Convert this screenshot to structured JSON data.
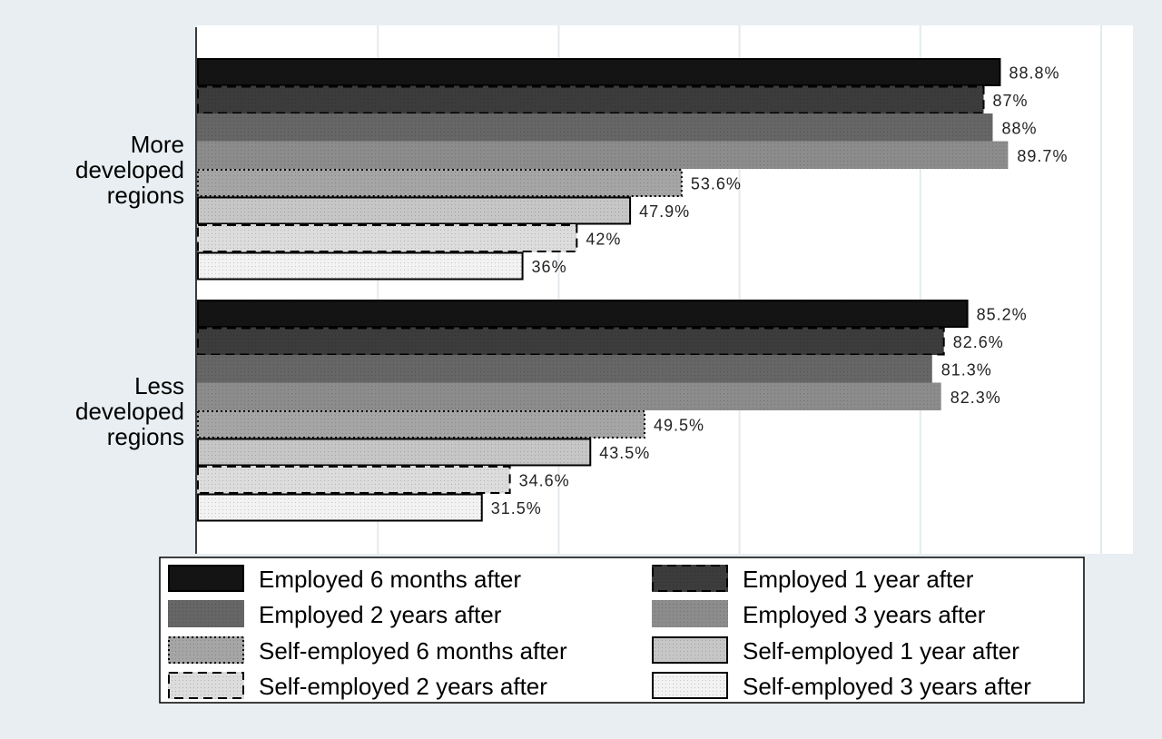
{
  "chart_data": {
    "type": "bar",
    "orientation": "horizontal",
    "categories": [
      "More developed regions",
      "Less developed regions"
    ],
    "category_label_lines": [
      [
        "More",
        "developed",
        "regions"
      ],
      [
        "Less",
        "developed",
        "regions"
      ]
    ],
    "series": [
      {
        "name": "Employed 6 months after",
        "values": [
          88.8,
          85.2
        ],
        "labels": [
          "88.8%",
          "85.2%"
        ],
        "fill": "#141414",
        "border": "solid"
      },
      {
        "name": "Employed 1 year after",
        "values": [
          87,
          82.6
        ],
        "labels": [
          "87%",
          "82.6%"
        ],
        "fill": "#3c3c3c",
        "border": "dashed"
      },
      {
        "name": "Employed 2 years after",
        "values": [
          88,
          81.3
        ],
        "labels": [
          "88%",
          "81.3%"
        ],
        "fill": "#666666",
        "border": "none"
      },
      {
        "name": "Employed 3 years after",
        "values": [
          89.7,
          82.3
        ],
        "labels": [
          "89.7%",
          "82.3%"
        ],
        "fill": "#8c8c8c",
        "border": "none"
      },
      {
        "name": "Self-employed 6 months after",
        "values": [
          53.6,
          49.5
        ],
        "labels": [
          "53.6%",
          "49.5%"
        ],
        "fill": "#a5a5a5",
        "border": "dotted"
      },
      {
        "name": "Self-employed 1 year after",
        "values": [
          47.9,
          43.5
        ],
        "labels": [
          "47.9%",
          "43.5%"
        ],
        "fill": "#c6c6c6",
        "border": "solid"
      },
      {
        "name": "Self-employed 2 years after",
        "values": [
          42,
          34.6
        ],
        "labels": [
          "42%",
          "34.6%"
        ],
        "fill": "#dcdcdc",
        "border": "dashed"
      },
      {
        "name": "Self-employed 3 years after",
        "values": [
          36,
          31.5
        ],
        "labels": [
          "36%",
          "31.5%"
        ],
        "fill": "#f2f2f2",
        "border": "solid"
      }
    ],
    "xlim": [
      0,
      104
    ],
    "gridlines_at": [
      0,
      20,
      40,
      60,
      80,
      100
    ],
    "grid": true,
    "title": "",
    "xlabel": "",
    "ylabel": "",
    "legend_position": "bottom",
    "legend_columns": 2,
    "colors": {
      "page_background": "#e8eef1",
      "plot_background": "#ffffff",
      "gridline": "#e4eaee",
      "axis": "#000000"
    }
  }
}
